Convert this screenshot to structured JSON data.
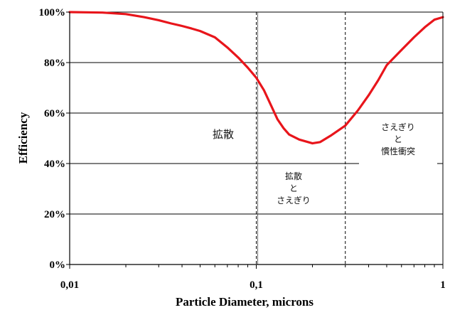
{
  "chart_data": {
    "type": "line",
    "xscale": "log",
    "xlim": [
      0.01,
      1
    ],
    "ylim": [
      0,
      100
    ],
    "xlabel": "Particle Diameter, microns",
    "ylabel": "Efficiency",
    "x_ticks": [
      {
        "value": 0.01,
        "label": "0,01"
      },
      {
        "value": 0.1,
        "label": "0,1"
      },
      {
        "value": 1,
        "label": "1"
      }
    ],
    "y_ticks": [
      {
        "value": 0,
        "label": "0%"
      },
      {
        "value": 20,
        "label": "20%"
      },
      {
        "value": 40,
        "label": "40%"
      },
      {
        "value": 60,
        "label": "60%"
      },
      {
        "value": 80,
        "label": "80%"
      },
      {
        "value": 100,
        "label": "100%"
      }
    ],
    "grid": {
      "horizontal": true,
      "vertical": false
    },
    "boundaries": [
      0.1,
      0.3
    ],
    "series": [
      {
        "color": "#e8151b",
        "points": [
          [
            0.01,
            100
          ],
          [
            0.015,
            99.8
          ],
          [
            0.02,
            99.2
          ],
          [
            0.025,
            98
          ],
          [
            0.03,
            96.8
          ],
          [
            0.035,
            95.5
          ],
          [
            0.04,
            94.5
          ],
          [
            0.045,
            93.5
          ],
          [
            0.05,
            92.5
          ],
          [
            0.06,
            90
          ],
          [
            0.07,
            86
          ],
          [
            0.08,
            82
          ],
          [
            0.09,
            78
          ],
          [
            0.1,
            74
          ],
          [
            0.11,
            69
          ],
          [
            0.12,
            63
          ],
          [
            0.13,
            57.5
          ],
          [
            0.14,
            54
          ],
          [
            0.15,
            51.5
          ],
          [
            0.17,
            49.5
          ],
          [
            0.2,
            48
          ],
          [
            0.22,
            48.5
          ],
          [
            0.25,
            51
          ],
          [
            0.3,
            55
          ],
          [
            0.35,
            61
          ],
          [
            0.4,
            67
          ],
          [
            0.45,
            73
          ],
          [
            0.5,
            79
          ],
          [
            0.6,
            85
          ],
          [
            0.7,
            90
          ],
          [
            0.8,
            94
          ],
          [
            0.9,
            97
          ],
          [
            1.0,
            98
          ]
        ]
      }
    ],
    "regions": [
      {
        "lines": [
          "拡散"
        ]
      },
      {
        "lines": [
          "拡散",
          "と",
          "さえぎり"
        ]
      },
      {
        "lines": [
          "さえぎり",
          "と",
          "慣性衝突"
        ]
      }
    ]
  }
}
